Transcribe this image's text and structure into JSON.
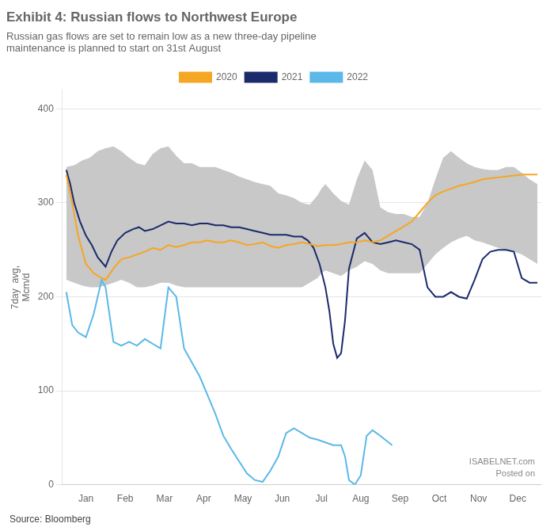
{
  "chart_data": {
    "type": "line",
    "title": "Exhibit 4: Russian flows to Northwest Europe",
    "subtitle": [
      "Russian gas flows are set to remain low as a new three-day pipeline",
      "maintenance is planned to start on 31st August"
    ],
    "ylabel": [
      "7day  avg,",
      "Mcm/d"
    ],
    "source": "Source: Bloomberg",
    "annotations": [
      "ISABELNET.com",
      "Posted on"
    ],
    "xlim": [
      -0.1,
      12.1
    ],
    "xticks": [
      {
        "value": 0.5,
        "label": "Jan"
      },
      {
        "value": 1.5,
        "label": "Feb"
      },
      {
        "value": 2.5,
        "label": "Mar"
      },
      {
        "value": 3.5,
        "label": "Apr"
      },
      {
        "value": 4.5,
        "label": "May"
      },
      {
        "value": 5.5,
        "label": "Jun"
      },
      {
        "value": 6.5,
        "label": "Jul"
      },
      {
        "value": 7.5,
        "label": "Aug"
      },
      {
        "value": 8.5,
        "label": "Sep"
      },
      {
        "value": 9.5,
        "label": "Oct"
      },
      {
        "value": 10.5,
        "label": "Nov"
      },
      {
        "value": 11.5,
        "label": "Dec"
      }
    ],
    "ylim": [
      0,
      420
    ],
    "yticks": [
      0,
      100,
      200,
      300,
      400
    ],
    "grid": "y",
    "legend": "top",
    "series": [
      {
        "name": "2020",
        "color": "#F5A623",
        "x": [
          0.0,
          0.15,
          0.3,
          0.5,
          0.7,
          0.9,
          1.0,
          1.2,
          1.4,
          1.6,
          1.8,
          2.0,
          2.2,
          2.4,
          2.6,
          2.8,
          3.0,
          3.2,
          3.4,
          3.6,
          3.8,
          4.0,
          4.2,
          4.4,
          4.6,
          4.8,
          5.0,
          5.2,
          5.4,
          5.6,
          5.8,
          6.0,
          6.2,
          6.4,
          6.6,
          6.8,
          7.0,
          7.2,
          7.4,
          7.6,
          7.8,
          8.0,
          8.2,
          8.4,
          8.6,
          8.8,
          9.0,
          9.2,
          9.4,
          9.6,
          9.8,
          10.0,
          10.2,
          10.4,
          10.6,
          10.8,
          11.0,
          11.2,
          11.4,
          11.6,
          11.8,
          12.0
        ],
        "values": [
          330,
          300,
          265,
          235,
          225,
          220,
          218,
          230,
          240,
          242,
          245,
          248,
          252,
          250,
          255,
          253,
          255,
          258,
          258,
          260,
          258,
          258,
          260,
          258,
          255,
          256,
          258,
          254,
          252,
          255,
          256,
          258,
          256,
          254,
          255,
          255,
          256,
          258,
          258,
          260,
          258,
          260,
          265,
          270,
          275,
          280,
          290,
          300,
          308,
          312,
          315,
          318,
          320,
          322,
          325,
          326,
          327,
          328,
          329,
          330,
          330,
          330
        ]
      },
      {
        "name": "2021",
        "color": "#1B2A6B",
        "x": [
          0.0,
          0.1,
          0.2,
          0.35,
          0.5,
          0.65,
          0.8,
          1.0,
          1.15,
          1.3,
          1.5,
          1.7,
          1.85,
          2.0,
          2.2,
          2.4,
          2.6,
          2.8,
          3.0,
          3.2,
          3.4,
          3.6,
          3.8,
          4.0,
          4.2,
          4.4,
          4.6,
          4.8,
          5.0,
          5.2,
          5.4,
          5.6,
          5.8,
          6.0,
          6.15,
          6.3,
          6.45,
          6.6,
          6.7,
          6.8,
          6.9,
          7.0,
          7.1,
          7.2,
          7.4,
          7.6,
          7.8,
          8.0,
          8.2,
          8.4,
          8.6,
          8.8,
          9.0,
          9.2,
          9.4,
          9.6,
          9.8,
          10.0,
          10.2,
          10.4,
          10.6,
          10.8,
          11.0,
          11.2,
          11.4,
          11.6,
          11.8,
          12.0
        ],
        "values": [
          335,
          320,
          300,
          280,
          265,
          255,
          242,
          232,
          248,
          260,
          268,
          272,
          274,
          270,
          272,
          276,
          280,
          278,
          278,
          276,
          278,
          278,
          276,
          276,
          274,
          274,
          272,
          270,
          268,
          266,
          266,
          266,
          264,
          264,
          260,
          252,
          235,
          210,
          185,
          150,
          135,
          140,
          175,
          230,
          262,
          268,
          258,
          256,
          258,
          260,
          258,
          256,
          250,
          210,
          200,
          200,
          205,
          200,
          198,
          218,
          240,
          248,
          250,
          250,
          248,
          220,
          215,
          215
        ]
      },
      {
        "name": "2022",
        "color": "#5BB8E8",
        "x": [
          0.0,
          0.15,
          0.3,
          0.5,
          0.7,
          0.9,
          1.0,
          1.2,
          1.4,
          1.6,
          1.8,
          2.0,
          2.2,
          2.4,
          2.6,
          2.8,
          3.0,
          3.2,
          3.4,
          3.6,
          3.8,
          4.0,
          4.2,
          4.4,
          4.6,
          4.8,
          5.0,
          5.2,
          5.4,
          5.6,
          5.8,
          6.0,
          6.2,
          6.4,
          6.6,
          6.8,
          7.0,
          7.1,
          7.2,
          7.35,
          7.5,
          7.65,
          7.8,
          8.0,
          8.3
        ],
        "values": [
          205,
          170,
          162,
          157,
          182,
          218,
          210,
          152,
          148,
          152,
          148,
          155,
          150,
          145,
          210,
          200,
          145,
          130,
          115,
          95,
          75,
          52,
          38,
          25,
          12,
          5,
          3,
          15,
          30,
          55,
          60,
          55,
          50,
          48,
          45,
          42,
          42,
          30,
          5,
          0,
          10,
          52,
          58,
          52,
          42
        ]
      },
      {
        "type": "band",
        "color": "#C8C8C8",
        "x": [
          0.0,
          0.2,
          0.4,
          0.6,
          0.8,
          1.0,
          1.2,
          1.4,
          1.6,
          1.8,
          2.0,
          2.2,
          2.4,
          2.6,
          2.8,
          3.0,
          3.2,
          3.4,
          3.6,
          3.8,
          4.0,
          4.2,
          4.4,
          4.6,
          4.8,
          5.0,
          5.2,
          5.4,
          5.6,
          5.8,
          6.0,
          6.2,
          6.4,
          6.5,
          6.6,
          6.8,
          7.0,
          7.2,
          7.4,
          7.6,
          7.8,
          8.0,
          8.2,
          8.4,
          8.6,
          8.8,
          9.0,
          9.2,
          9.4,
          9.6,
          9.8,
          10.0,
          10.2,
          10.4,
          10.6,
          10.8,
          11.0,
          11.2,
          11.4,
          11.6,
          11.8,
          12.0
        ],
        "upper": [
          338,
          340,
          345,
          348,
          355,
          358,
          360,
          355,
          348,
          342,
          340,
          352,
          358,
          360,
          350,
          342,
          342,
          338,
          338,
          338,
          335,
          332,
          328,
          325,
          322,
          320,
          318,
          310,
          308,
          305,
          300,
          298,
          308,
          315,
          320,
          310,
          302,
          298,
          325,
          345,
          335,
          295,
          290,
          288,
          288,
          285,
          285,
          300,
          325,
          348,
          355,
          348,
          342,
          338,
          336,
          335,
          335,
          338,
          338,
          332,
          325,
          320
        ],
        "lower": [
          218,
          215,
          212,
          210,
          210,
          212,
          215,
          218,
          215,
          210,
          210,
          212,
          215,
          215,
          212,
          210,
          210,
          210,
          210,
          210,
          210,
          210,
          210,
          210,
          210,
          210,
          210,
          210,
          210,
          210,
          210,
          215,
          220,
          225,
          228,
          225,
          222,
          228,
          232,
          238,
          235,
          228,
          225,
          225,
          225,
          225,
          225,
          235,
          245,
          252,
          258,
          262,
          265,
          260,
          258,
          255,
          252,
          250,
          248,
          245,
          240,
          235
        ]
      }
    ]
  }
}
